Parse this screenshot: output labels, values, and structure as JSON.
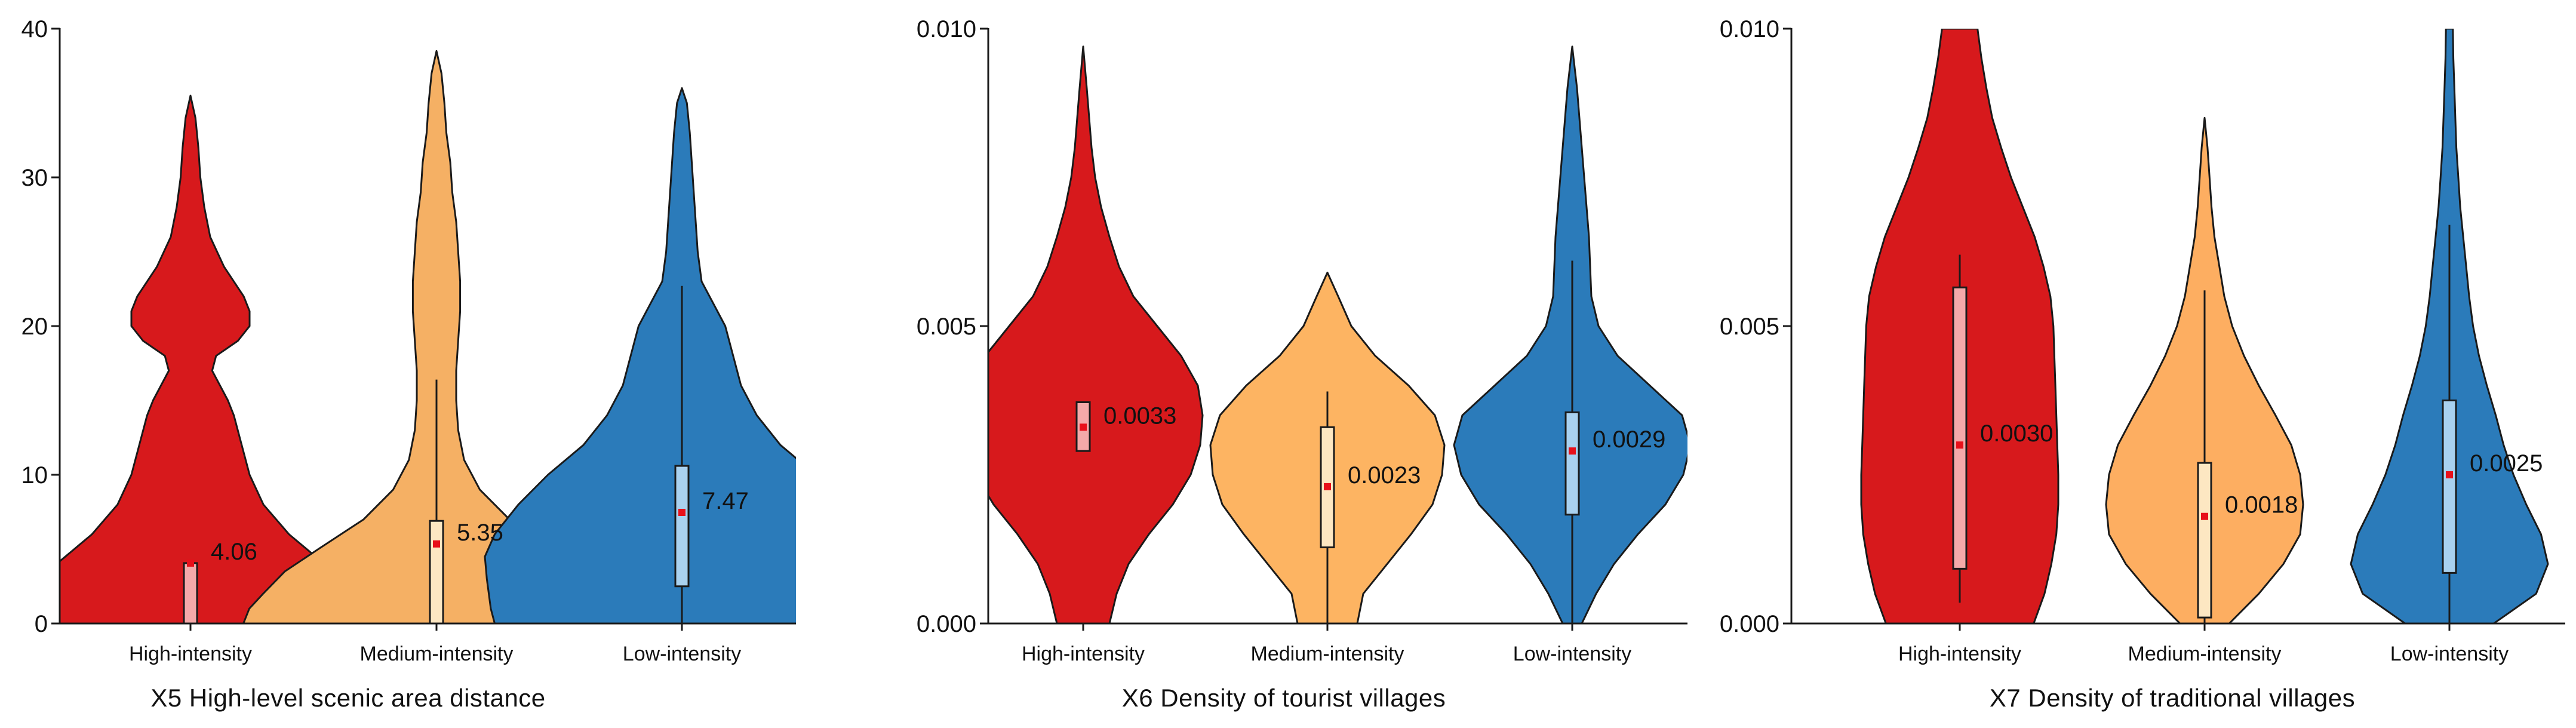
{
  "chart_data": [
    {
      "type": "violin",
      "title": "X5 High-level scenic area distance",
      "categories": [
        "High-intensity",
        "Medium-intensity",
        "Low-intensity"
      ],
      "ylim": [
        0,
        40
      ],
      "yticks": [
        {
          "value": 0,
          "label": "0"
        },
        {
          "value": 10,
          "label": "10"
        },
        {
          "value": 20,
          "label": "20"
        },
        {
          "value": 30,
          "label": "30"
        },
        {
          "value": 40,
          "label": "40"
        }
      ],
      "colors": [
        "#d7191c",
        "#f5b064",
        "#2b7bba"
      ],
      "box_colors": [
        "#f4a9a9",
        "#fde7c2",
        "#a9d1ef"
      ],
      "violins": [
        {
          "name": "High-intensity",
          "median": 4.06,
          "label": "4.06",
          "q1": 0,
          "q3": 4.06,
          "whisker_low": 0,
          "whisker_high": 4.06,
          "profile": [
            [
              0,
              0.98
            ],
            [
              1,
              0.94
            ],
            [
              2,
              0.85
            ],
            [
              4,
              0.68
            ],
            [
              6,
              0.5
            ],
            [
              8,
              0.37
            ],
            [
              10,
              0.3
            ],
            [
              12,
              0.26
            ],
            [
              14,
              0.22
            ],
            [
              15,
              0.19
            ],
            [
              16,
              0.15
            ],
            [
              17,
              0.11
            ],
            [
              18,
              0.13
            ],
            [
              19,
              0.24
            ],
            [
              20,
              0.3
            ],
            [
              21,
              0.3
            ],
            [
              22,
              0.27
            ],
            [
              24,
              0.17
            ],
            [
              26,
              0.1
            ],
            [
              28,
              0.07
            ],
            [
              30,
              0.05
            ],
            [
              32,
              0.04
            ],
            [
              34,
              0.025
            ],
            [
              35.5,
              0
            ]
          ]
        },
        {
          "name": "Medium-intensity",
          "median": 5.35,
          "label": "5.35",
          "q1": 0,
          "q3": 6.9,
          "whisker_low": 0,
          "whisker_high": 16.4,
          "profile": [
            [
              0,
              0.98
            ],
            [
              1,
              0.95
            ],
            [
              2,
              0.88
            ],
            [
              3.5,
              0.77
            ],
            [
              5,
              0.6
            ],
            [
              7,
              0.37
            ],
            [
              9,
              0.22
            ],
            [
              11,
              0.14
            ],
            [
              13,
              0.11
            ],
            [
              15,
              0.1
            ],
            [
              17,
              0.1
            ],
            [
              19,
              0.11
            ],
            [
              21,
              0.12
            ],
            [
              23,
              0.12
            ],
            [
              25,
              0.11
            ],
            [
              27,
              0.1
            ],
            [
              29,
              0.08
            ],
            [
              31,
              0.07
            ],
            [
              33,
              0.05
            ],
            [
              35,
              0.04
            ],
            [
              37,
              0.025
            ],
            [
              38.5,
              0
            ]
          ]
        },
        {
          "name": "Low-intensity",
          "median": 7.47,
          "label": "7.47",
          "q1": 2.5,
          "q3": 10.6,
          "whisker_low": 0,
          "whisker_high": 22.7,
          "profile": [
            [
              0,
              0.95
            ],
            [
              1,
              0.97
            ],
            [
              3,
              0.99
            ],
            [
              4.5,
              1.0
            ],
            [
              6,
              0.95
            ],
            [
              8,
              0.83
            ],
            [
              10,
              0.68
            ],
            [
              12,
              0.5
            ],
            [
              14,
              0.38
            ],
            [
              16,
              0.3
            ],
            [
              18,
              0.26
            ],
            [
              20,
              0.22
            ],
            [
              21.5,
              0.16
            ],
            [
              23,
              0.1
            ],
            [
              25,
              0.08
            ],
            [
              27,
              0.07
            ],
            [
              29,
              0.06
            ],
            [
              31,
              0.05
            ],
            [
              33,
              0.04
            ],
            [
              35,
              0.025
            ],
            [
              36,
              0
            ]
          ]
        }
      ]
    },
    {
      "type": "violin",
      "title": "X6 Density of tourist villages",
      "categories": [
        "High-intensity",
        "Medium-intensity",
        "Low-intensity"
      ],
      "ylim": [
        0,
        0.01
      ],
      "yticks": [
        {
          "value": 0,
          "label": "0.000"
        },
        {
          "value": 0.005,
          "label": "0.005"
        },
        {
          "value": 0.01,
          "label": "0.010"
        }
      ],
      "colors": [
        "#d7191c",
        "#fdb462",
        "#2b7bba"
      ],
      "box_colors": [
        "#f4a9a9",
        "#fde7c2",
        "#a9d1ef"
      ],
      "violins": [
        {
          "name": "High-intensity",
          "median": 0.0033,
          "label": "0.0033",
          "q1": 0.0029,
          "q3": 0.00372,
          "whisker_low": 0.0029,
          "whisker_high": 0.00372,
          "profile": [
            [
              0,
              0.22
            ],
            [
              0.0005,
              0.28
            ],
            [
              0.001,
              0.38
            ],
            [
              0.0015,
              0.55
            ],
            [
              0.002,
              0.75
            ],
            [
              0.0025,
              0.9
            ],
            [
              0.003,
              0.98
            ],
            [
              0.0035,
              1.0
            ],
            [
              0.004,
              0.96
            ],
            [
              0.0045,
              0.82
            ],
            [
              0.005,
              0.62
            ],
            [
              0.0055,
              0.42
            ],
            [
              0.006,
              0.3
            ],
            [
              0.0065,
              0.22
            ],
            [
              0.007,
              0.15
            ],
            [
              0.0075,
              0.1
            ],
            [
              0.008,
              0.07
            ],
            [
              0.0085,
              0.05
            ],
            [
              0.009,
              0.03
            ],
            [
              0.0097,
              0
            ]
          ]
        },
        {
          "name": "Medium-intensity",
          "median": 0.0023,
          "label": "0.0023",
          "q1": 0.00128,
          "q3": 0.0033,
          "whisker_low": 0,
          "whisker_high": 0.0039,
          "profile": [
            [
              0,
              0.25
            ],
            [
              0.0005,
              0.3
            ],
            [
              0.001,
              0.5
            ],
            [
              0.0015,
              0.7
            ],
            [
              0.002,
              0.88
            ],
            [
              0.0025,
              0.96
            ],
            [
              0.003,
              0.98
            ],
            [
              0.0035,
              0.9
            ],
            [
              0.004,
              0.68
            ],
            [
              0.0045,
              0.4
            ],
            [
              0.005,
              0.2
            ],
            [
              0.0055,
              0.09
            ],
            [
              0.0059,
              0
            ]
          ]
        },
        {
          "name": "Low-intensity",
          "median": 0.0029,
          "label": "0.0029",
          "q1": 0.00183,
          "q3": 0.00355,
          "whisker_low": 0,
          "whisker_high": 0.0061,
          "profile": [
            [
              0,
              0.08
            ],
            [
              0.0005,
              0.2
            ],
            [
              0.001,
              0.35
            ],
            [
              0.0015,
              0.55
            ],
            [
              0.002,
              0.78
            ],
            [
              0.0025,
              0.93
            ],
            [
              0.003,
              0.99
            ],
            [
              0.0035,
              0.92
            ],
            [
              0.004,
              0.65
            ],
            [
              0.0045,
              0.38
            ],
            [
              0.005,
              0.22
            ],
            [
              0.0055,
              0.16
            ],
            [
              0.006,
              0.15
            ],
            [
              0.0065,
              0.14
            ],
            [
              0.007,
              0.12
            ],
            [
              0.0075,
              0.1
            ],
            [
              0.008,
              0.08
            ],
            [
              0.0085,
              0.06
            ],
            [
              0.009,
              0.04
            ],
            [
              0.0097,
              0
            ]
          ]
        }
      ]
    },
    {
      "type": "violin",
      "title": "X7 Density of traditional villages",
      "categories": [
        "High-intensity",
        "Medium-intensity",
        "Low-intensity"
      ],
      "ylim": [
        0,
        0.01
      ],
      "yticks": [
        {
          "value": 0,
          "label": "0.000"
        },
        {
          "value": 0.005,
          "label": "0.005"
        },
        {
          "value": 0.01,
          "label": "0.010"
        }
      ],
      "colors": [
        "#d7191c",
        "#fdae61",
        "#2b7bba"
      ],
      "box_colors": [
        "#f4a9a9",
        "#fde7c2",
        "#a9d1ef"
      ],
      "violins": [
        {
          "name": "High-intensity",
          "median": 0.003,
          "label": "0.0030",
          "q1": 0.00092,
          "q3": 0.00565,
          "whisker_low": 0.00035,
          "whisker_high": 0.0062,
          "profile": [
            [
              0,
              0.75
            ],
            [
              0.0005,
              0.86
            ],
            [
              0.001,
              0.93
            ],
            [
              0.0015,
              0.98
            ],
            [
              0.002,
              1.0
            ],
            [
              0.0025,
              1.0
            ],
            [
              0.003,
              0.99
            ],
            [
              0.0035,
              0.98
            ],
            [
              0.004,
              0.97
            ],
            [
              0.0045,
              0.96
            ],
            [
              0.005,
              0.95
            ],
            [
              0.0055,
              0.92
            ],
            [
              0.006,
              0.85
            ],
            [
              0.0065,
              0.76
            ],
            [
              0.007,
              0.64
            ],
            [
              0.0075,
              0.52
            ],
            [
              0.008,
              0.42
            ],
            [
              0.0085,
              0.33
            ],
            [
              0.009,
              0.27
            ],
            [
              0.0095,
              0.22
            ],
            [
              0.01,
              0.18
            ]
          ]
        },
        {
          "name": "Medium-intensity",
          "median": 0.0018,
          "label": "0.0018",
          "q1": 0.0001,
          "q3": 0.0027,
          "whisker_low": 0,
          "whisker_high": 0.0056,
          "profile": [
            [
              0,
              0.25
            ],
            [
              0.0005,
              0.55
            ],
            [
              0.001,
              0.8
            ],
            [
              0.0015,
              0.97
            ],
            [
              0.002,
              1.0
            ],
            [
              0.0025,
              0.97
            ],
            [
              0.003,
              0.88
            ],
            [
              0.0035,
              0.72
            ],
            [
              0.004,
              0.55
            ],
            [
              0.0045,
              0.4
            ],
            [
              0.005,
              0.28
            ],
            [
              0.0055,
              0.2
            ],
            [
              0.006,
              0.15
            ],
            [
              0.0065,
              0.1
            ],
            [
              0.007,
              0.07
            ],
            [
              0.0075,
              0.05
            ],
            [
              0.008,
              0.03
            ],
            [
              0.0085,
              0
            ]
          ]
        },
        {
          "name": "Low-intensity",
          "median": 0.0025,
          "label": "0.0025",
          "q1": 0.00085,
          "q3": 0.00375,
          "whisker_low": 0,
          "whisker_high": 0.0067,
          "profile": [
            [
              0,
              0.45
            ],
            [
              0.0005,
              0.88
            ],
            [
              0.001,
              1.0
            ],
            [
              0.0015,
              0.93
            ],
            [
              0.002,
              0.78
            ],
            [
              0.0025,
              0.65
            ],
            [
              0.003,
              0.55
            ],
            [
              0.0035,
              0.47
            ],
            [
              0.004,
              0.38
            ],
            [
              0.0045,
              0.3
            ],
            [
              0.005,
              0.24
            ],
            [
              0.0055,
              0.2
            ],
            [
              0.006,
              0.17
            ],
            [
              0.0065,
              0.14
            ],
            [
              0.007,
              0.11
            ],
            [
              0.0075,
              0.09
            ],
            [
              0.008,
              0.07
            ],
            [
              0.0085,
              0.06
            ],
            [
              0.009,
              0.05
            ],
            [
              0.0095,
              0.04
            ],
            [
              0.01,
              0.035
            ]
          ]
        }
      ]
    }
  ]
}
